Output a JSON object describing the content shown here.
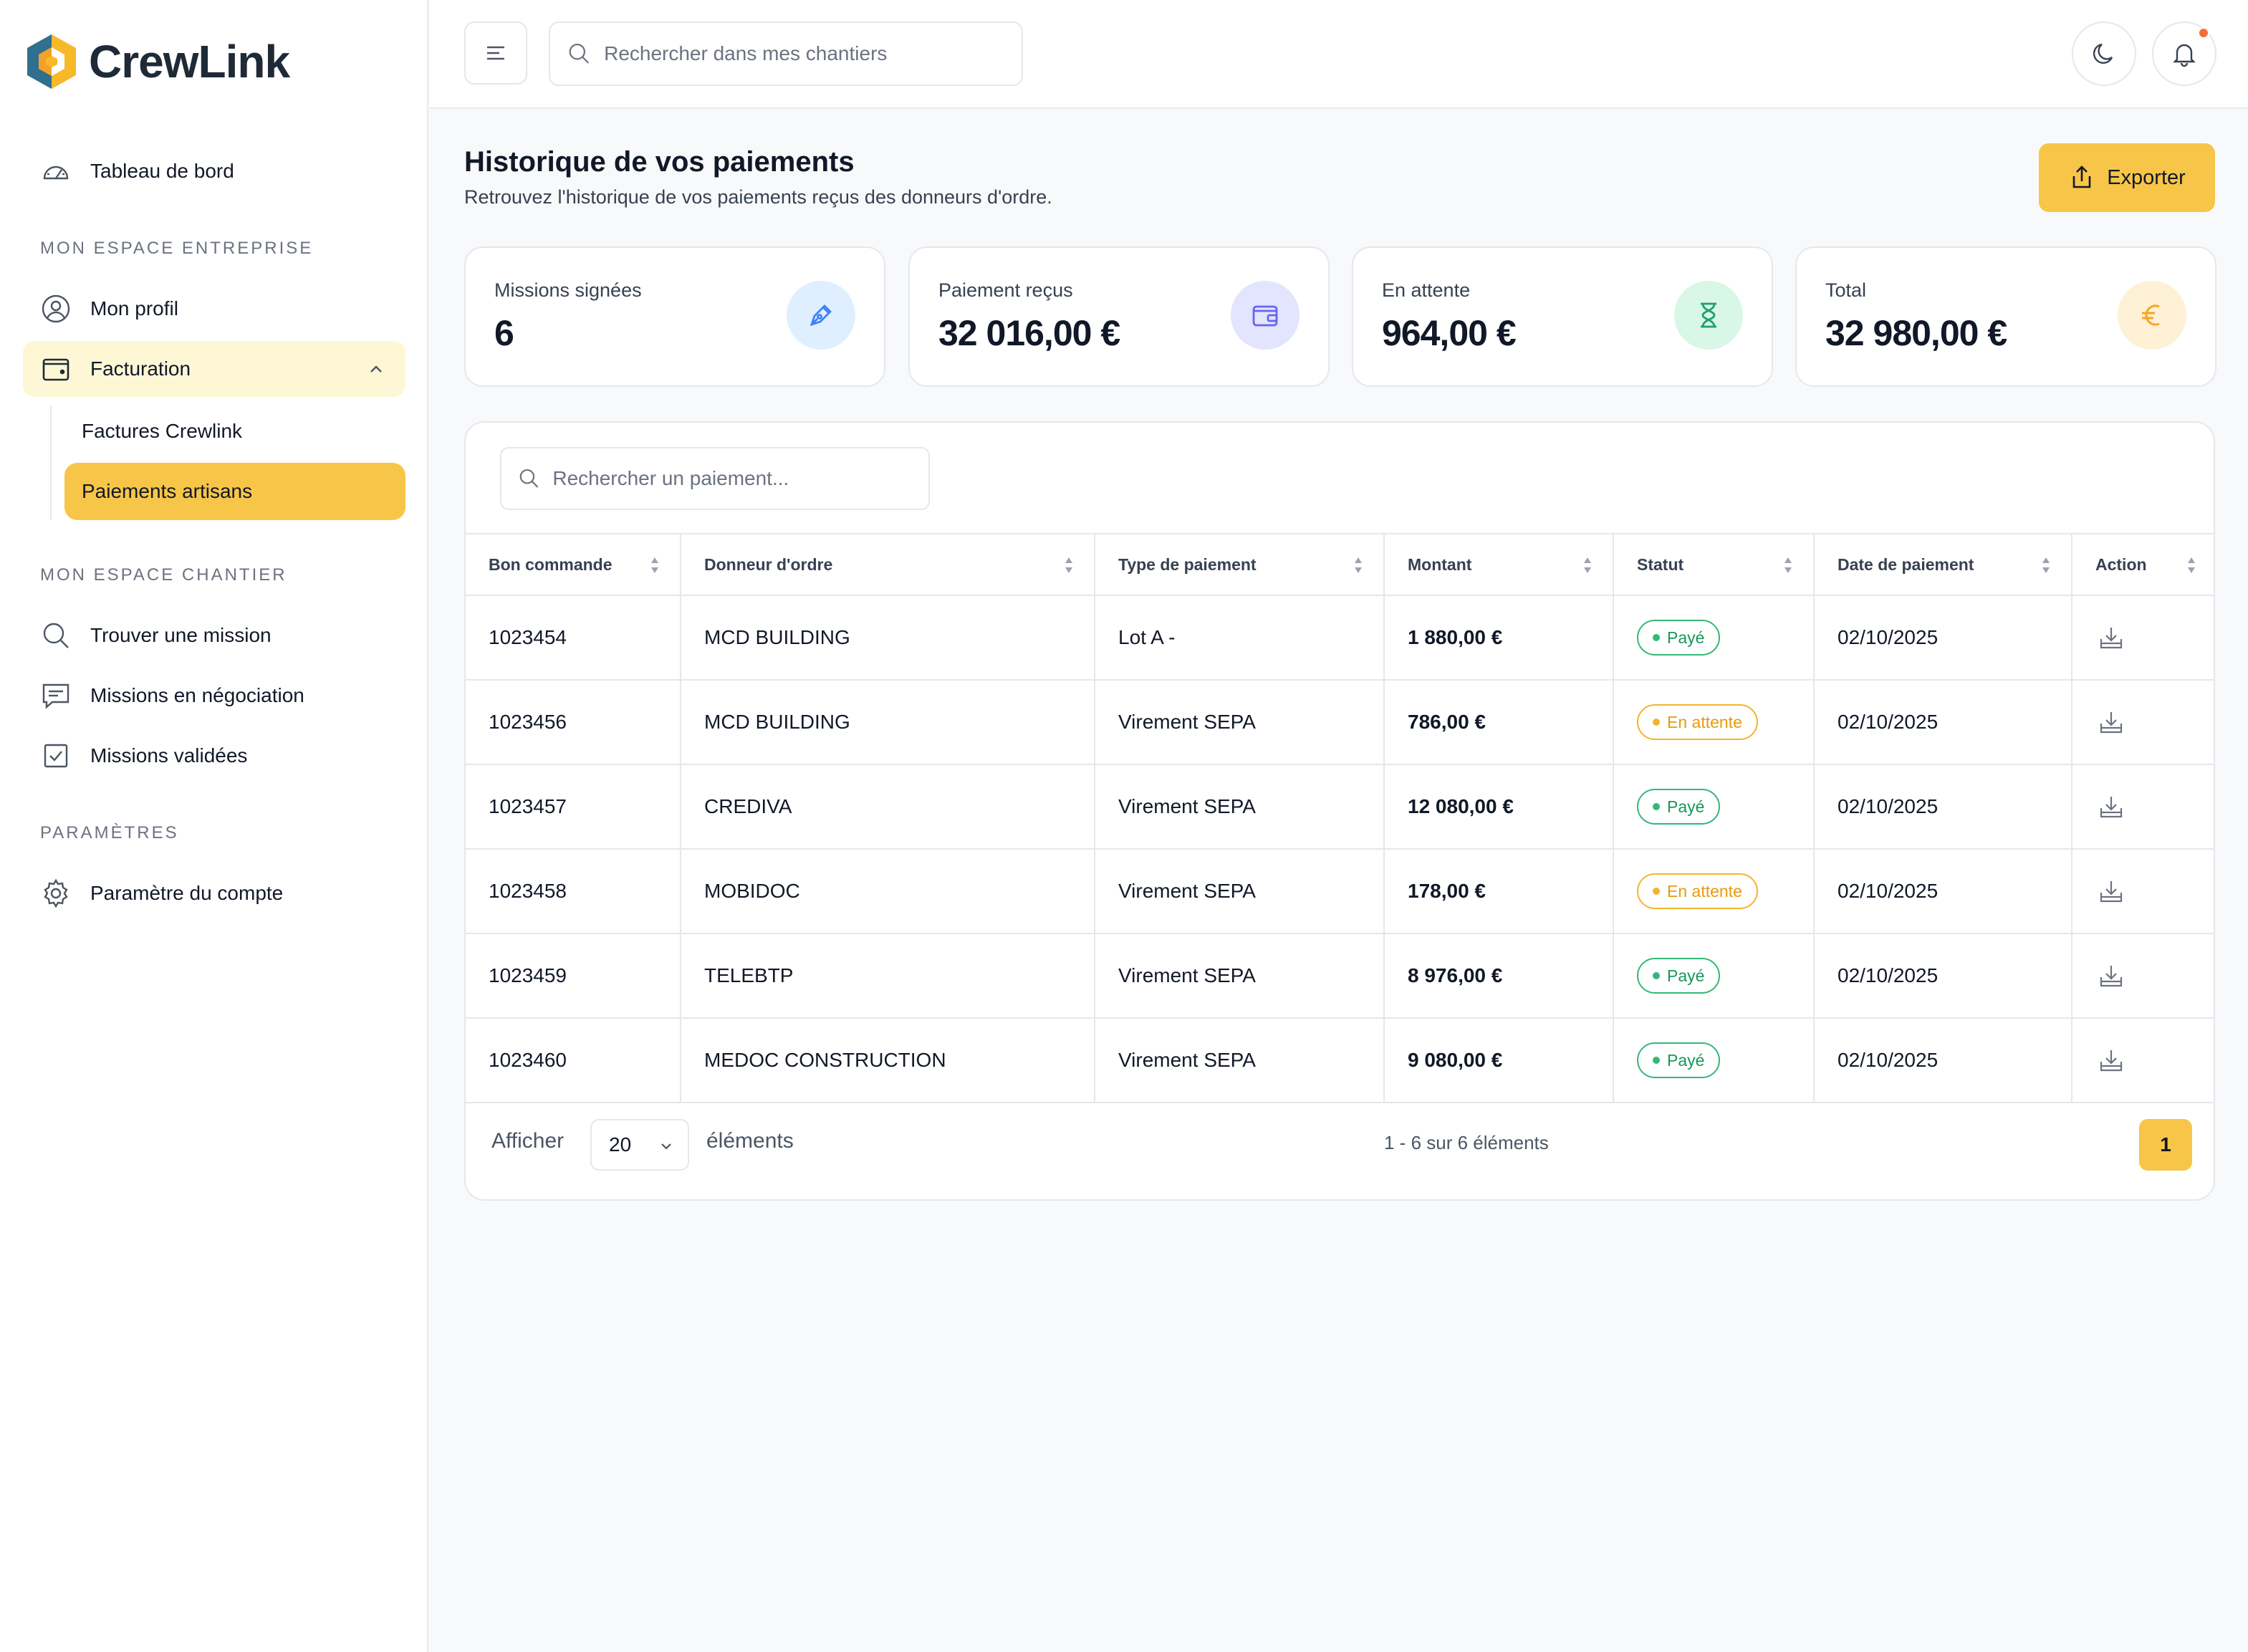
{
  "brand": {
    "name": "CrewLink"
  },
  "sidebar": {
    "dashboard": {
      "label": "Tableau de bord",
      "icon": "dashboard-gauge-icon"
    },
    "section_entreprise": "MON ESPACE ENTREPRISE",
    "profile": {
      "label": "Mon profil",
      "icon": "user-circle-icon"
    },
    "billing": {
      "label": "Facturation",
      "icon": "wallet-icon",
      "expanded": true,
      "children": [
        {
          "label": "Factures Crewlink",
          "active": false
        },
        {
          "label": "Paiements artisans",
          "active": true
        }
      ]
    },
    "section_chantier": "MON ESPACE CHANTIER",
    "find_mission": {
      "label": "Trouver une mission",
      "icon": "search-icon"
    },
    "negotiation": {
      "label": "Missions en négociation",
      "icon": "chat-icon"
    },
    "validated": {
      "label": "Missions validées",
      "icon": "checkbox-icon"
    },
    "section_params": "PARAMÈTRES",
    "account_settings": {
      "label": "Paramètre du compte",
      "icon": "gear-icon"
    }
  },
  "topbar": {
    "search_placeholder": "Rechercher dans mes chantiers",
    "has_notification": true
  },
  "header": {
    "title": "Historique de vos paiements",
    "subtitle": "Retrouvez l'historique de vos paiements reçus des donneurs d'ordre.",
    "export_label": "Exporter"
  },
  "stats": [
    {
      "label": "Missions signées",
      "value": "6",
      "icon": "pen-icon",
      "color": "#3b82f6",
      "bg": "#e0efff"
    },
    {
      "label": "Paiement reçus",
      "value": "32 016,00 €",
      "icon": "wallet-icon",
      "color": "#6366f1",
      "bg": "#e3e4fd"
    },
    {
      "label": "En attente",
      "value": "964,00 €",
      "icon": "hourglass-icon",
      "color": "#22a06b",
      "bg": "#d9f7e6"
    },
    {
      "label": "Total",
      "value": "32 980,00 €",
      "icon": "euro-icon",
      "color": "#f5a623",
      "bg": "#fff1d6"
    }
  ],
  "table": {
    "search_placeholder": "Rechercher un paiement...",
    "columns": [
      "Bon commande",
      "Donneur d'ordre",
      "Type de paiement",
      "Montant",
      "Statut",
      "Date de paiement",
      "Action"
    ],
    "rows": [
      {
        "order": "1023454",
        "client": "MCD BUILDING",
        "type": "Lot A -",
        "amount": "1 880,00 €",
        "status": "Payé",
        "status_kind": "paid",
        "date": "02/10/2025"
      },
      {
        "order": "1023456",
        "client": "MCD BUILDING",
        "type": "Virement SEPA",
        "amount": "786,00 €",
        "status": "En attente",
        "status_kind": "pending",
        "date": "02/10/2025"
      },
      {
        "order": "1023457",
        "client": "CREDIVA",
        "type": "Virement SEPA",
        "amount": "12 080,00 €",
        "status": "Payé",
        "status_kind": "paid",
        "date": "02/10/2025"
      },
      {
        "order": "1023458",
        "client": "MOBIDOC",
        "type": "Virement SEPA",
        "amount": "178,00 €",
        "status": "En attente",
        "status_kind": "pending",
        "date": "02/10/2025"
      },
      {
        "order": "1023459",
        "client": "TELEBTP",
        "type": "Virement SEPA",
        "amount": "8 976,00 €",
        "status": "Payé",
        "status_kind": "paid",
        "date": "02/10/2025"
      },
      {
        "order": "1023460",
        "client": "MEDOC CONSTRUCTION",
        "type": "Virement SEPA",
        "amount": "9 080,00 €",
        "status": "Payé",
        "status_kind": "paid",
        "date": "02/10/2025"
      }
    ]
  },
  "pagination": {
    "show_label": "Afficher",
    "page_size": "20",
    "elements_label": "éléments",
    "range_text": "1 - 6 sur 6 éléments",
    "current_page": "1"
  },
  "colors": {
    "accent": "#f7c548",
    "accent_light": "#fef7d6",
    "paid": "#34b778",
    "pending": "#f5b32a"
  }
}
